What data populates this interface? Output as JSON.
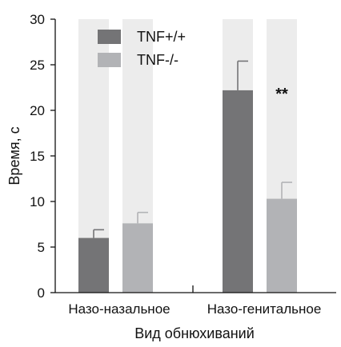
{
  "chart_data": {
    "type": "bar",
    "categories": [
      "Назо-назальное",
      "Назо-генитальное"
    ],
    "series": [
      {
        "name": "TNF+/+",
        "values": [
          6.0,
          22.2
        ],
        "errors": [
          0.9,
          3.2
        ],
        "color": "#747476"
      },
      {
        "name": "TNF-/-",
        "values": [
          7.6,
          10.3
        ],
        "errors": [
          1.2,
          1.8
        ],
        "color": "#b2b3b6"
      }
    ],
    "xlabel": "Вид обнюхиваний",
    "ylabel": "Время, с",
    "ylim": [
      0,
      30
    ],
    "yticks": [
      0,
      5,
      10,
      15,
      20,
      25,
      30
    ],
    "ytick_labels": [
      "0",
      "5",
      "10",
      "15",
      "20",
      "25",
      "30"
    ],
    "annotations": [
      {
        "text": "**",
        "category": 1,
        "series": 1
      }
    ],
    "background_bar_color": "#ececec",
    "legend_placement": "top-left",
    "grid": false
  }
}
